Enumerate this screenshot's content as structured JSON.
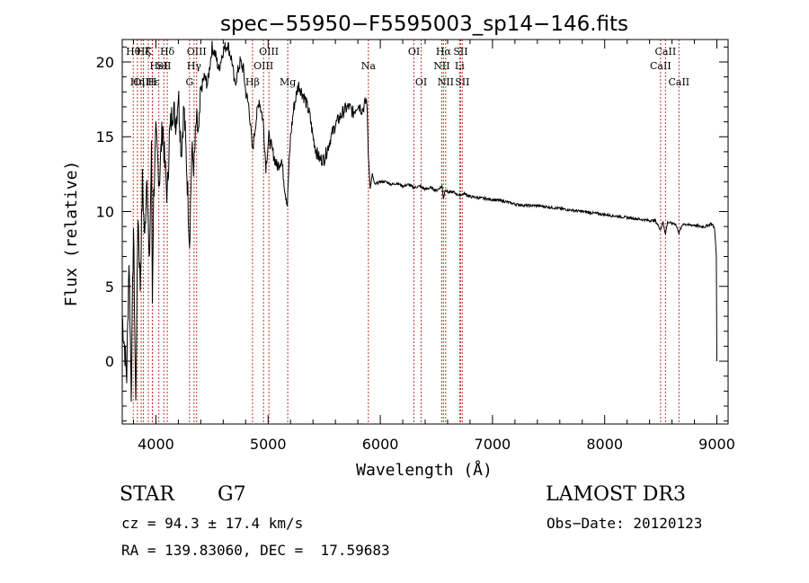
{
  "chart_data": {
    "type": "line",
    "title": "spec−55950−F5595003_sp14−146.fits",
    "xlabel": "Wavelength (Å)",
    "ylabel": "Flux (relative)",
    "xlim": [
      3700,
      9100
    ],
    "ylim": [
      -4.2,
      21.5
    ],
    "xticks": [
      4000,
      5000,
      6000,
      7000,
      8000,
      9000
    ],
    "yticks": [
      0,
      5,
      10,
      15,
      20
    ],
    "grid": false,
    "series": [
      {
        "x": [
          3700,
          3720,
          3740,
          3760,
          3780,
          3800,
          3820,
          3840,
          3860,
          3880,
          3900,
          3920,
          3940,
          3960,
          3968,
          3980,
          4000,
          4030,
          4060,
          4080,
          4101,
          4120,
          4150,
          4180,
          4200,
          4226,
          4250,
          4280,
          4300,
          4320,
          4340,
          4360,
          4383,
          4400,
          4430,
          4460,
          4500,
          4530,
          4560,
          4600,
          4640,
          4680,
          4700,
          4720,
          4750,
          4780,
          4800,
          4830,
          4861,
          4890,
          4920,
          4957,
          4980,
          5007,
          5040,
          5080,
          5120,
          5150,
          5172,
          5183,
          5200,
          5230,
          5270,
          5300,
          5330,
          5370,
          5400,
          5430,
          5460,
          5500,
          5530,
          5560,
          5600,
          5640,
          5680,
          5720,
          5760,
          5800,
          5840,
          5880,
          5893,
          5910,
          5930,
          5950,
          6000,
          6050,
          6100,
          6150,
          6200,
          6250,
          6300,
          6350,
          6400,
          6450,
          6500,
          6550,
          6563,
          6580,
          6600,
          6650,
          6700,
          6750,
          6800,
          6900,
          7000,
          7100,
          7200,
          7300,
          7400,
          7500,
          7600,
          7700,
          7800,
          7900,
          8000,
          8100,
          8200,
          8300,
          8400,
          8450,
          8498,
          8520,
          8542,
          8560,
          8600,
          8630,
          8662,
          8700,
          8750,
          8800,
          8850,
          8900,
          8950,
          8980,
          8995,
          9000
        ],
        "y": [
          3,
          1,
          -1,
          7,
          -2,
          9,
          -3,
          10,
          5,
          12,
          8,
          13,
          6,
          14,
          4,
          11,
          15,
          12,
          16,
          13,
          11,
          15,
          17,
          16,
          18,
          14,
          17,
          12,
          8,
          14,
          13,
          16,
          15,
          18,
          19,
          18.5,
          21,
          20.5,
          19.5,
          20.8,
          21.2,
          20,
          18.5,
          19,
          20,
          19.5,
          18,
          17,
          14,
          16,
          17.5,
          16,
          13,
          15,
          14,
          13,
          13.5,
          11.5,
          10.5,
          12.5,
          15,
          17,
          18.5,
          18,
          17.5,
          16.5,
          15,
          14,
          13.5,
          13.5,
          14.2,
          15,
          15.8,
          16.3,
          16.8,
          17,
          16.6,
          17.2,
          16.8,
          17.5,
          14,
          11.5,
          12.5,
          11.8,
          12,
          12,
          11.8,
          11.9,
          11.7,
          11.8,
          11.6,
          11.7,
          11.5,
          11.6,
          11.4,
          11.7,
          10.9,
          11.5,
          11.3,
          11.3,
          11.1,
          11.2,
          11,
          10.9,
          10.8,
          10.7,
          10.5,
          10.4,
          10.4,
          10.3,
          10.2,
          10.1,
          10,
          9.9,
          9.8,
          9.7,
          9.6,
          9.5,
          9.4,
          9.4,
          8.8,
          9.3,
          8.5,
          9.3,
          9.2,
          9.2,
          8.6,
          9.2,
          9.1,
          9.1,
          9,
          9,
          9.2,
          8.9,
          7,
          0
        ]
      }
    ],
    "lines": [
      {
        "x": 3798,
        "label": "Hθ",
        "row": 0
      },
      {
        "x": 3835,
        "label": "Hη",
        "row": 2
      },
      {
        "x": 3869,
        "label": "OII",
        "row": 2
      },
      {
        "x": 3889,
        "label": "Hζ",
        "row": 0
      },
      {
        "x": 3933,
        "label": "K",
        "row": 0
      },
      {
        "x": 3968,
        "label": "H",
        "row": 2
      },
      {
        "x": 3970,
        "label": "Hε",
        "row": 2
      },
      {
        "x": 4026,
        "label": "HeI",
        "row": 1
      },
      {
        "x": 4071,
        "label": "SII",
        "row": 1
      },
      {
        "x": 4101,
        "label": "Hδ",
        "row": 0
      },
      {
        "x": 4300,
        "label": "G",
        "row": 2
      },
      {
        "x": 4340,
        "label": "Hγ",
        "row": 1
      },
      {
        "x": 4363,
        "label": "OIII",
        "row": 0
      },
      {
        "x": 4861,
        "label": "Hβ",
        "row": 2
      },
      {
        "x": 4959,
        "label": "OIII",
        "row": 1
      },
      {
        "x": 5007,
        "label": "OIII",
        "row": 0
      },
      {
        "x": 5175,
        "label": "Mg",
        "row": 2
      },
      {
        "x": 5894,
        "label": "Na",
        "row": 1
      },
      {
        "x": 6300,
        "label": "OI",
        "row": 0
      },
      {
        "x": 6364,
        "label": "OI",
        "row": 2
      },
      {
        "x": 6548,
        "label": "NII",
        "row": 1
      },
      {
        "x": 6563,
        "label": "Hα",
        "row": 0
      },
      {
        "x": 6583,
        "label": "NII",
        "row": 2
      },
      {
        "x": 6707,
        "label": "Li",
        "row": 1
      },
      {
        "x": 6716,
        "label": "SII",
        "row": 0
      },
      {
        "x": 6731,
        "label": "SII",
        "row": 2
      },
      {
        "x": 8498,
        "label": "CaII",
        "row": 1
      },
      {
        "x": 8542,
        "label": "CaII",
        "row": 0
      },
      {
        "x": 8662,
        "label": "CaII",
        "row": 2
      }
    ]
  },
  "info": {
    "class_label": "STAR",
    "subclass": "G7",
    "survey": "LAMOST DR3",
    "velocity": "cz = 94.3 ± 17.4 km/s",
    "obs_date": "Obs−Date: 20120123",
    "coords": "RA = 139.83060, DEC =  17.59683"
  },
  "colors": {
    "line": "#000000",
    "marker_lines": "#c0392b"
  }
}
